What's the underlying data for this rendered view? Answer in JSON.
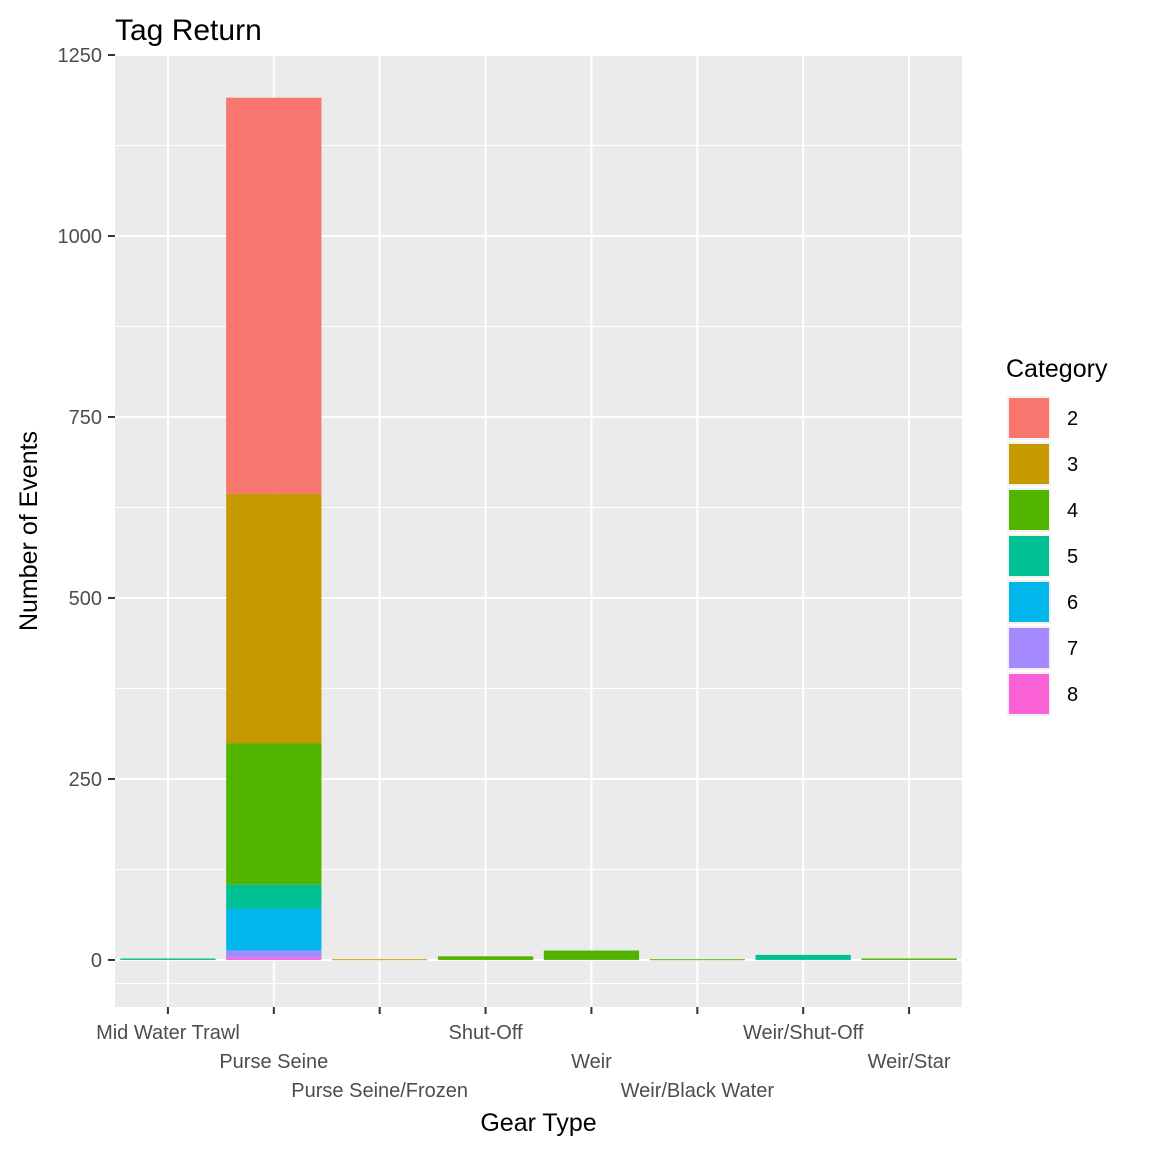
{
  "chart_data": {
    "type": "bar",
    "stacked": true,
    "title": "Tag Return",
    "xlabel": "Gear Type",
    "ylabel": "Number of Events",
    "ylim": [
      -65,
      1250
    ],
    "yticks": [
      0,
      250,
      500,
      750,
      1000,
      1250
    ],
    "grid": true,
    "categories": [
      "Mid Water Trawl",
      "Purse Seine",
      "Purse Seine/Frozen",
      "Shut-Off",
      "Weir",
      "Weir/Black Water",
      "Weir/Shut-Off",
      "Weir/Star"
    ],
    "legend": {
      "title": "Category",
      "position": "right"
    },
    "series": [
      {
        "name": "2",
        "color": "#F8766D",
        "values": [
          0,
          547,
          0,
          0,
          0,
          0,
          0,
          0
        ]
      },
      {
        "name": "3",
        "color": "#C49A00",
        "values": [
          0,
          345,
          1,
          0,
          0,
          0,
          0,
          0
        ]
      },
      {
        "name": "4",
        "color": "#53B400",
        "values": [
          0,
          195,
          0,
          5,
          13,
          1,
          0,
          2
        ]
      },
      {
        "name": "5",
        "color": "#00C094",
        "values": [
          2,
          33,
          0,
          0,
          0,
          0,
          7,
          0
        ]
      },
      {
        "name": "6",
        "color": "#00B6EB",
        "values": [
          0,
          58,
          0,
          0,
          0,
          0,
          0,
          0
        ]
      },
      {
        "name": "7",
        "color": "#A58AFF",
        "values": [
          0,
          10,
          0,
          0,
          0,
          0,
          0,
          0
        ]
      },
      {
        "name": "8",
        "color": "#FB61D7",
        "values": [
          0,
          3,
          0,
          0,
          0,
          0,
          0,
          0
        ]
      }
    ]
  }
}
